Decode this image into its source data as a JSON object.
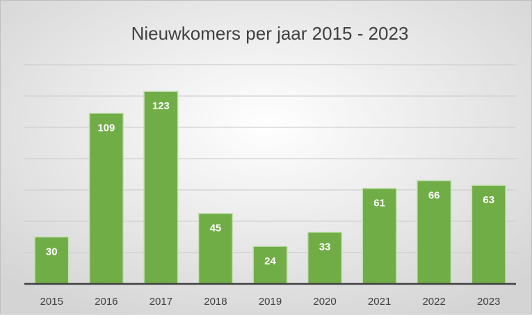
{
  "chart_data": {
    "type": "bar",
    "title": "Nieuwkomers per jaar 2015 - 2023",
    "categories": [
      "2015",
      "2016",
      "2017",
      "2018",
      "2019",
      "2020",
      "2021",
      "2022",
      "2023"
    ],
    "values": [
      30,
      109,
      123,
      45,
      24,
      33,
      61,
      66,
      63
    ],
    "color": "#70ad47",
    "ylim": [
      0,
      140
    ],
    "yticks": [
      0,
      20,
      40,
      60,
      80,
      100,
      120,
      140
    ],
    "grid": true
  }
}
